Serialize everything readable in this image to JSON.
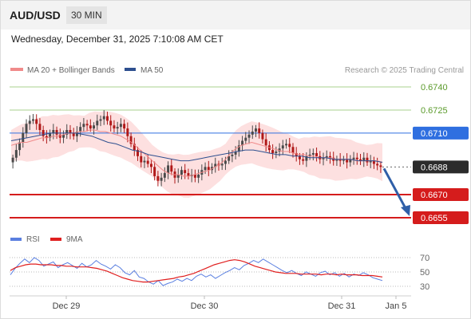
{
  "header": {
    "symbol": "AUD/USD",
    "interval": "30 MIN"
  },
  "datetime": "Wednesday, December 31, 2025 7:10:08 AM CET",
  "legend": {
    "ma20": "MA 20 + Bollinger Bands",
    "ma50": "MA 50",
    "credit": "Research © 2025 Trading Central"
  },
  "colors": {
    "ma20": "#f08a8a",
    "ma50": "#2e4f8f",
    "bollinger_fill": "#fde0e0",
    "candle_up": "#4a4a4a",
    "candle_down": "#b01818",
    "resistance_green": "#a8d08d",
    "pivot_blue": "#2f6fe0",
    "support_red": "#d51c1c",
    "current_price_bg": "#2b2b2b",
    "rsi": "#5a7fe0",
    "rsi_ma": "#e01f1f",
    "arrow": "#2f5fa8"
  },
  "chart_data": [
    {
      "type": "candlestick",
      "instrument": "AUD/USD",
      "interval": "30 MIN",
      "ylim": [
        0.6648,
        0.6745
      ],
      "x_ticks": [
        "Dec 29",
        "Dec 30",
        "Dec 31",
        "Jan 5"
      ],
      "levels": [
        {
          "value": 0.674,
          "label": "0.6740",
          "kind": "resistance"
        },
        {
          "value": 0.6725,
          "label": "0.6725",
          "kind": "resistance"
        },
        {
          "value": 0.671,
          "label": "0.6710",
          "kind": "pivot"
        },
        {
          "value": 0.6688,
          "label": "0.6688",
          "kind": "current"
        },
        {
          "value": 0.667,
          "label": "0.6670",
          "kind": "support"
        },
        {
          "value": 0.6655,
          "label": "0.6655",
          "kind": "support"
        }
      ],
      "close_series": [
        0.6694,
        0.6699,
        0.6704,
        0.671,
        0.6716,
        0.6718,
        0.6719,
        0.6716,
        0.6712,
        0.6708,
        0.6707,
        0.671,
        0.6712,
        0.6709,
        0.6707,
        0.6709,
        0.6712,
        0.671,
        0.6708,
        0.6711,
        0.6714,
        0.6716,
        0.6715,
        0.6713,
        0.6715,
        0.6718,
        0.6719,
        0.6721,
        0.6718,
        0.6715,
        0.6713,
        0.6714,
        0.6716,
        0.6713,
        0.6708,
        0.6703,
        0.6699,
        0.6695,
        0.6691,
        0.6692,
        0.669,
        0.6688,
        0.6682,
        0.6679,
        0.6681,
        0.6684,
        0.6689,
        0.6685,
        0.6681,
        0.6683,
        0.6686,
        0.6684,
        0.6682,
        0.6683,
        0.6681,
        0.6683,
        0.6686,
        0.6688,
        0.6686,
        0.6688,
        0.669,
        0.6689,
        0.669,
        0.6692,
        0.6695,
        0.6696,
        0.6698,
        0.6702,
        0.6705,
        0.6707,
        0.6709,
        0.6711,
        0.6713,
        0.671,
        0.6706,
        0.6702,
        0.6699,
        0.6697,
        0.6698,
        0.67,
        0.6702,
        0.6703,
        0.6701,
        0.6697,
        0.6695,
        0.6693,
        0.6692,
        0.6695,
        0.6696,
        0.6697,
        0.6695,
        0.6693,
        0.6694,
        0.6695,
        0.6694,
        0.6692,
        0.6693,
        0.6692,
        0.6693,
        0.6691,
        0.6693,
        0.6694,
        0.6693,
        0.6692,
        0.6694,
        0.6691,
        0.6692,
        0.669,
        0.6689,
        0.6688
      ],
      "series": [
        {
          "name": "MA 20 + Bollinger Bands",
          "values": [
            0.6702,
            0.6703,
            0.6704,
            0.6704,
            0.6705,
            0.6706,
            0.6707,
            0.6707,
            0.6708,
            0.6708,
            0.6709,
            0.671,
            0.671,
            0.6711,
            0.6711,
            0.6712,
            0.6712,
            0.6711,
            0.6711,
            0.671,
            0.6709,
            0.6708,
            0.6706,
            0.6704,
            0.6701,
            0.6698,
            0.6695,
            0.6692,
            0.6689,
            0.6686,
            0.6684,
            0.6683,
            0.6683,
            0.6682,
            0.6682,
            0.6683,
            0.6684,
            0.6685,
            0.6686,
            0.6688,
            0.669,
            0.6693,
            0.6697,
            0.67,
            0.6702,
            0.6703,
            0.6704,
            0.6703,
            0.6702,
            0.6701,
            0.67,
            0.6699,
            0.6698,
            0.6698,
            0.6697,
            0.6696,
            0.6696,
            0.6695,
            0.6695,
            0.6694,
            0.6694,
            0.6694,
            0.6693,
            0.6693,
            0.6693,
            0.6693,
            0.6692,
            0.6692,
            0.6692,
            0.6692,
            0.6692,
            0.6691
          ]
        },
        {
          "name": "MA 50",
          "values": [
            0.6705,
            0.6706,
            0.6707,
            0.6708,
            0.6709,
            0.671,
            0.671,
            0.671,
            0.671,
            0.6709,
            0.6708,
            0.6706,
            0.6704,
            0.6703,
            0.6701,
            0.6699,
            0.6698,
            0.6696,
            0.6695,
            0.6694,
            0.6693,
            0.6692,
            0.6692,
            0.6693,
            0.6694,
            0.6695,
            0.6696,
            0.6697,
            0.6698,
            0.6699,
            0.6699,
            0.6698,
            0.6697,
            0.6696,
            0.6696,
            0.6695,
            0.6695,
            0.6694,
            0.6694,
            0.6694,
            0.6693,
            0.6693,
            0.6693,
            0.6692,
            0.6692,
            0.6692,
            0.6691
          ]
        }
      ],
      "forecast": {
        "from": 0.6688,
        "to": 0.6655
      }
    },
    {
      "type": "line",
      "ylim": [
        25,
        75
      ],
      "y_ticks": [
        70,
        50,
        30
      ],
      "series": [
        {
          "name": "RSI",
          "values": [
            46,
            55,
            62,
            68,
            63,
            70,
            66,
            58,
            61,
            64,
            56,
            60,
            63,
            59,
            55,
            62,
            57,
            60,
            66,
            61,
            58,
            54,
            60,
            56,
            49,
            46,
            52,
            43,
            41,
            36,
            33,
            38,
            31,
            34,
            36,
            40,
            37,
            41,
            38,
            44,
            47,
            43,
            46,
            41,
            45,
            49,
            52,
            56,
            53,
            59,
            62,
            66,
            63,
            68,
            64,
            60,
            56,
            52,
            49,
            52,
            48,
            45,
            50,
            47,
            44,
            49,
            51,
            46,
            49,
            44,
            48,
            43,
            47,
            45,
            49,
            46,
            42,
            40,
            38
          ]
        },
        {
          "name": "9MA",
          "values": [
            52,
            56,
            58,
            60,
            61,
            61,
            60,
            60,
            60,
            59,
            59,
            58,
            58,
            57,
            57,
            57,
            56,
            55,
            53,
            51,
            48,
            45,
            42,
            40,
            38,
            37,
            36,
            36,
            37,
            38,
            39,
            40,
            41,
            43,
            44,
            46,
            48,
            51,
            54,
            57,
            60,
            62,
            64,
            66,
            67,
            66,
            64,
            61,
            58,
            56,
            54,
            52,
            50,
            49,
            48,
            48,
            48,
            47,
            47,
            47,
            47,
            46,
            47,
            47,
            46,
            47,
            46,
            46,
            46,
            45,
            45,
            45,
            44,
            43
          ]
        }
      ]
    }
  ]
}
